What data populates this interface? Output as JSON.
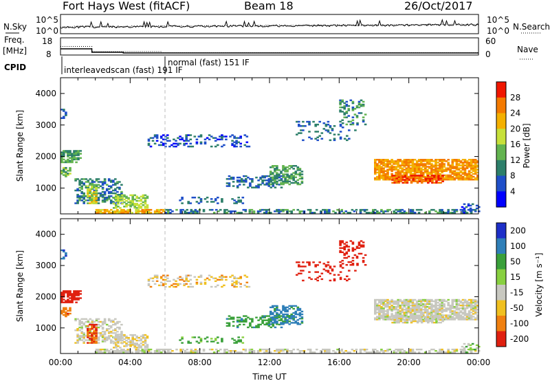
{
  "header": {
    "title": "Fort Hays West (fitACF)",
    "beam": "Beam 18",
    "date": "26/Oct/2017"
  },
  "status_panels": {
    "nsky_label": "N.Sky",
    "nsearch_label": "N.Search",
    "freq_label_line1": "Freq.",
    "freq_label_line2": "[MHz]",
    "nave_label": "Nave",
    "cpid_label": "CPID",
    "noise_ticks": [
      "10^5",
      "10^0"
    ],
    "freq_ticks": [
      "18",
      "8"
    ],
    "nave_ticks": [
      "60",
      "0"
    ],
    "freq_series": {
      "x": [
        0,
        1.8,
        1.8,
        3.6,
        3.6,
        24
      ],
      "y": [
        13.2,
        13.2,
        11.2,
        11.2,
        10.8,
        10.8
      ]
    },
    "nave_series": {
      "x": [
        0,
        1.8,
        1.8,
        5.8,
        5.8,
        24
      ],
      "y": [
        30,
        30,
        12,
        12,
        8,
        8
      ]
    },
    "cpid_modes": [
      {
        "text": "interleavedscan (fast)  191  IF",
        "start_hour": 0
      },
      {
        "text": "normal (fast)  151  IF",
        "start_hour": 6
      }
    ]
  },
  "chart_data": [
    {
      "type": "heatmap",
      "name": "power",
      "ylabel": "Slant Range [km]",
      "xlabel": "",
      "ylim": [
        180,
        4500
      ],
      "xlim": [
        0,
        24
      ],
      "yticks": [
        "1000",
        "2000",
        "3000",
        "4000"
      ],
      "colorbar": {
        "label": "Power [dB]",
        "ticks": [
          "4",
          "8",
          "12",
          "16",
          "20",
          "24",
          "28"
        ],
        "colors": [
          "#0000ff",
          "#1f4fc9",
          "#2d7f6a",
          "#63b450",
          "#c7e03a",
          "#f4b000",
          "#f47a00",
          "#f01600"
        ]
      }
    },
    {
      "type": "heatmap",
      "name": "velocity",
      "ylabel": "Slant Range [km]",
      "xlabel": "Time UT",
      "ylim": [
        180,
        4500
      ],
      "xlim": [
        0,
        24
      ],
      "yticks": [
        "1000",
        "2000",
        "3000",
        "4000"
      ],
      "xticks": [
        "00:00",
        "04:00",
        "08:00",
        "12:00",
        "16:00",
        "20:00",
        "00:00"
      ],
      "colorbar": {
        "label": "Velocity [m s⁻¹]",
        "ticks": [
          "200",
          "100",
          "50",
          "15",
          "-15",
          "-50",
          "-100",
          "-200"
        ],
        "colors": [
          "#1d2fc8",
          "#2f7fb8",
          "#3aa03a",
          "#88d040",
          "#c8c8c0",
          "#f0c020",
          "#f08010",
          "#e02010"
        ]
      }
    }
  ],
  "echo_regions": [
    {
      "t0": 2.0,
      "t1": 6.0,
      "r0": 200,
      "r1": 300,
      "p": 22,
      "v": 0,
      "d": 0.85
    },
    {
      "t0": 6.0,
      "t1": 24.0,
      "r0": 200,
      "r1": 300,
      "p": 10,
      "v": 0,
      "d": 0.55
    },
    {
      "t0": 0.0,
      "t1": 1.2,
      "r0": 1800,
      "r1": 2200,
      "p": 12,
      "v": -120,
      "d": 0.7
    },
    {
      "t0": 0.0,
      "t1": 0.5,
      "r0": 1350,
      "r1": 1650,
      "p": 14,
      "v": -60,
      "d": 0.6
    },
    {
      "t0": 0.8,
      "t1": 3.5,
      "r0": 500,
      "r1": 1300,
      "p": 10,
      "v": 0,
      "d": 0.5
    },
    {
      "t0": 3.0,
      "t1": 5.0,
      "r0": 350,
      "r1": 800,
      "p": 16,
      "v": -10,
      "d": 0.65
    },
    {
      "t0": 1.5,
      "t1": 2.1,
      "r0": 500,
      "r1": 1100,
      "p": 18,
      "v": -70,
      "d": 0.7
    },
    {
      "t0": 5.0,
      "t1": 10.8,
      "r0": 2300,
      "r1": 2700,
      "p": 6,
      "v": -20,
      "d": 0.3
    },
    {
      "t0": 6.8,
      "t1": 10.5,
      "r0": 500,
      "r1": 700,
      "p": 8,
      "v": 40,
      "d": 0.25
    },
    {
      "t0": 9.5,
      "t1": 12.8,
      "r0": 1000,
      "r1": 1400,
      "p": 8,
      "v": 60,
      "d": 0.35
    },
    {
      "t0": 12.0,
      "t1": 13.8,
      "r0": 1100,
      "r1": 1700,
      "p": 12,
      "v": 90,
      "d": 0.55
    },
    {
      "t0": 13.5,
      "t1": 17.0,
      "r0": 2500,
      "r1": 3100,
      "p": 8,
      "v": -130,
      "d": 0.18
    },
    {
      "t0": 16.0,
      "t1": 17.5,
      "r0": 3000,
      "r1": 3800,
      "p": 10,
      "v": -160,
      "d": 0.25
    },
    {
      "t0": 18.0,
      "t1": 24.0,
      "r0": 1250,
      "r1": 1900,
      "p": 24,
      "v": 0,
      "d": 0.8
    },
    {
      "t0": 19.0,
      "t1": 22.0,
      "r0": 1150,
      "r1": 1400,
      "p": 28,
      "v": 0,
      "d": 0.7
    },
    {
      "t0": 23.0,
      "t1": 24.0,
      "r0": 200,
      "r1": 500,
      "p": 6,
      "v": 20,
      "d": 0.35
    },
    {
      "t0": 0.0,
      "t1": 0.3,
      "r0": 3200,
      "r1": 3500,
      "p": 8,
      "v": 150,
      "d": 0.4
    }
  ]
}
